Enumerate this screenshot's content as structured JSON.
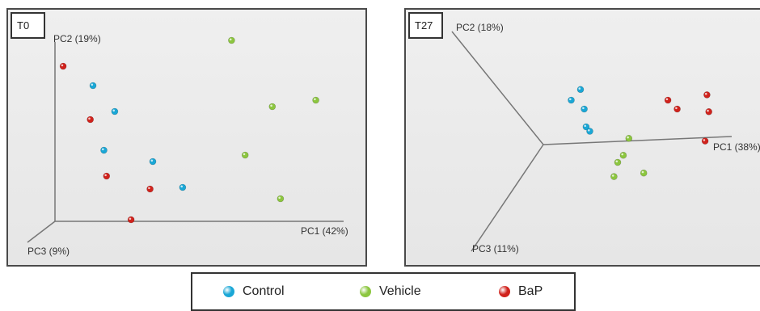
{
  "colors": {
    "Control": "#1aa7d6",
    "Vehicle": "#8cc63f",
    "BaP": "#d0221c"
  },
  "legend": [
    {
      "label": "Control",
      "color": "#1aa7d6"
    },
    {
      "label": "Vehicle",
      "color": "#8cc63f"
    },
    {
      "label": "BaP",
      "color": "#d0221c"
    }
  ],
  "chart_data": [
    {
      "type": "scatter",
      "title": "T0",
      "view": "3d-pca",
      "axes": {
        "pc1": "PC1 (42%)",
        "pc2": "PC2 (19%)",
        "pc3": "PC3 (9%)"
      },
      "series": [
        {
          "name": "Control",
          "color": "#1aa7d6",
          "points": [
            [
              0.14,
              0.84
            ],
            [
              0.22,
              0.68
            ],
            [
              0.18,
              0.44
            ],
            [
              0.36,
              0.37
            ],
            [
              0.47,
              0.21
            ]
          ]
        },
        {
          "name": "Vehicle",
          "color": "#8cc63f",
          "points": [
            [
              0.65,
              1.12
            ],
            [
              0.8,
              0.71
            ],
            [
              0.96,
              0.75
            ],
            [
              0.7,
              0.41
            ],
            [
              0.83,
              0.14
            ]
          ]
        },
        {
          "name": "BaP",
          "color": "#d0221c",
          "points": [
            [
              0.03,
              0.96
            ],
            [
              0.13,
              0.63
            ],
            [
              0.19,
              0.28
            ],
            [
              0.35,
              0.2
            ],
            [
              0.28,
              0.01
            ]
          ]
        }
      ]
    },
    {
      "type": "scatter",
      "title": "T27",
      "view": "3d-pca",
      "axes": {
        "pc1": "PC1 (38%)",
        "pc2": "PC2 (18%)",
        "pc3": "PC3 (11%)"
      },
      "series": [
        {
          "name": "Control",
          "color": "#1aa7d6",
          "points": [
            [
              0.2,
              0.62
            ],
            [
              0.15,
              0.5
            ],
            [
              0.22,
              0.4
            ],
            [
              0.23,
              0.2
            ],
            [
              0.25,
              0.15
            ]
          ]
        },
        {
          "name": "Vehicle",
          "color": "#8cc63f",
          "points": [
            [
              0.46,
              0.07
            ],
            [
              0.43,
              -0.12
            ],
            [
              0.4,
              -0.2
            ],
            [
              0.38,
              -0.36
            ],
            [
              0.54,
              -0.32
            ]
          ]
        },
        {
          "name": "BaP",
          "color": "#d0221c",
          "points": [
            [
              0.67,
              0.5
            ],
            [
              0.88,
              0.56
            ],
            [
              0.72,
              0.4
            ],
            [
              0.89,
              0.37
            ],
            [
              0.87,
              0.04
            ]
          ]
        }
      ]
    }
  ]
}
